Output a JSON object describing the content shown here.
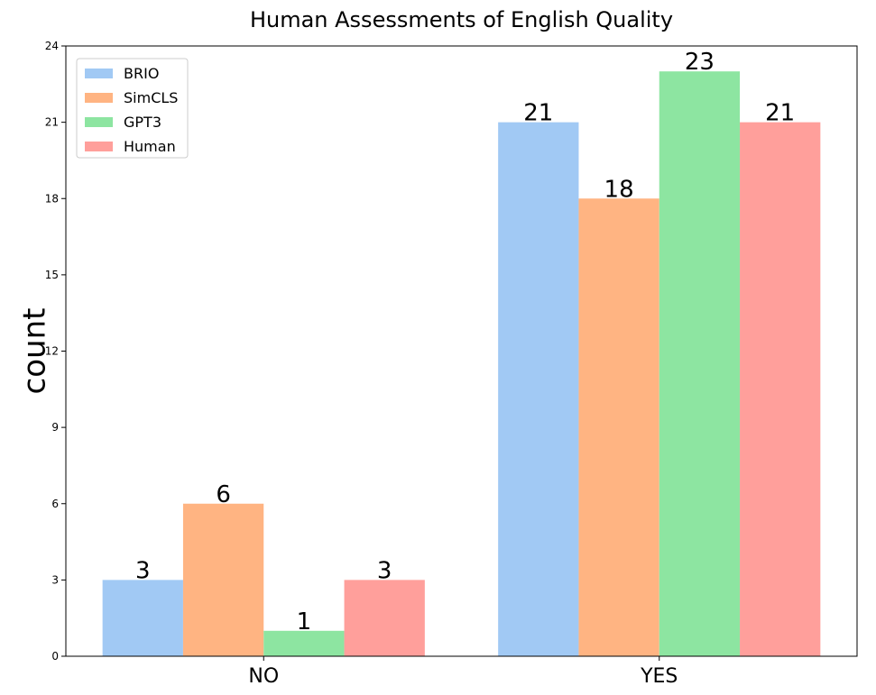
{
  "chart_data": {
    "type": "bar",
    "title": "Human Assessments of English Quality",
    "xlabel": "",
    "ylabel": "count",
    "categories": [
      "NO",
      "YES"
    ],
    "series": [
      {
        "name": "BRIO",
        "values": [
          3,
          21
        ],
        "color": "#a1c9f4"
      },
      {
        "name": "SimCLS",
        "values": [
          6,
          18
        ],
        "color": "#ffb482"
      },
      {
        "name": "GPT3",
        "values": [
          1,
          23
        ],
        "color": "#8de5a1"
      },
      {
        "name": "Human",
        "values": [
          3,
          21
        ],
        "color": "#ff9f9b"
      }
    ],
    "ylim": [
      0,
      24
    ],
    "yticks": [
      0,
      3,
      6,
      9,
      12,
      15,
      18,
      21,
      24
    ],
    "grid": false,
    "legend_position": "top-left",
    "data_labels": true
  }
}
